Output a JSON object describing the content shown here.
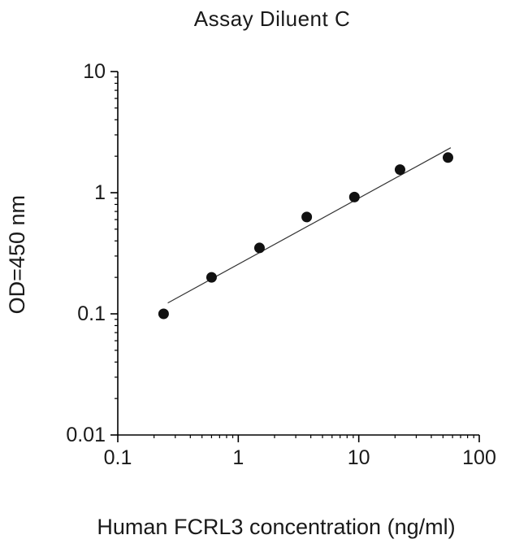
{
  "chart_data": {
    "type": "scatter",
    "title": "Assay Diluent C",
    "xlabel": "Human FCRL3 concentration (ng/ml)",
    "ylabel": "OD=450 nm",
    "xscale": "log",
    "yscale": "log",
    "xlim": [
      0.1,
      100
    ],
    "ylim": [
      0.01,
      10
    ],
    "x_ticks": [
      0.1,
      1,
      10,
      100
    ],
    "y_ticks": [
      0.01,
      0.1,
      1,
      10
    ],
    "grid": false,
    "legend": "none",
    "marker": "filled-circle",
    "marker_color": "#111111",
    "line_color": "#333333",
    "axis_color": "#000000",
    "points": {
      "x": [
        0.24,
        0.6,
        1.5,
        3.7,
        9.2,
        22,
        55
      ],
      "y": [
        0.1,
        0.2,
        0.35,
        0.63,
        0.92,
        1.55,
        1.95
      ]
    },
    "fit_line": {
      "x": [
        0.26,
        58
      ],
      "y": [
        0.123,
        2.35
      ]
    }
  }
}
